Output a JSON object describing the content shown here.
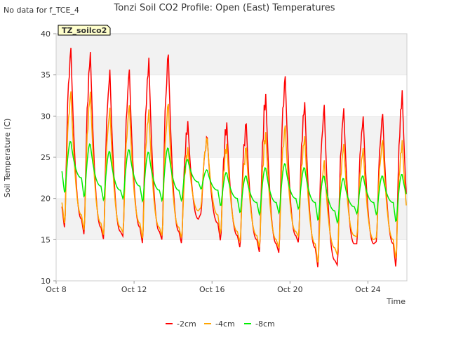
{
  "page": {
    "no_data_note": "No data for f_TCE_4"
  },
  "chart_data": {
    "type": "line",
    "title": "Tonzi Soil CO2 Profile: Open (East) Temperatures",
    "xlabel": "Time",
    "ylabel": "Soil Temperature (C)",
    "site_badge": "TZ_soilco2",
    "x_ticks": [
      "Oct 8",
      "Oct 12",
      "Oct 16",
      "Oct 20",
      "Oct 24"
    ],
    "x_tick_days": [
      8,
      12,
      16,
      20,
      24
    ],
    "xlim": [
      8,
      26
    ],
    "y_ticks": [
      10,
      15,
      20,
      25,
      30,
      35,
      40
    ],
    "ylim": [
      10,
      40
    ],
    "grid": "horizontal bands",
    "legend_position": "bottom-center",
    "series": [
      {
        "name": "-2cm",
        "color": "#ff0000",
        "day_start": 8.3,
        "daily": [
          [
            16.0,
            39.0,
            17.5
          ],
          [
            15.3,
            38.5,
            16.5
          ],
          [
            14.8,
            36.3,
            16.0
          ],
          [
            15.3,
            36.3,
            16.5
          ],
          [
            14.2,
            37.8,
            16.0
          ],
          [
            14.8,
            38.2,
            16.0
          ],
          [
            14.3,
            29.8,
            17.5
          ],
          [
            18.3,
            27.7,
            17.0
          ],
          [
            14.5,
            29.7,
            15.5
          ],
          [
            13.8,
            29.5,
            15.0
          ],
          [
            13.2,
            33.3,
            14.5
          ],
          [
            13.2,
            35.5,
            15.5
          ],
          [
            14.5,
            32.3,
            14.0
          ],
          [
            11.2,
            32.0,
            12.5
          ],
          [
            11.8,
            31.5,
            14.5
          ],
          [
            14.5,
            30.5,
            14.5
          ],
          [
            14.8,
            30.8,
            14.5
          ],
          [
            11.2,
            33.8,
            14.0
          ]
        ]
      },
      {
        "name": "-4cm",
        "color": "#ffa500",
        "day_start": 8.3,
        "daily": [
          [
            16.5,
            33.5,
            18.0
          ],
          [
            15.8,
            33.5,
            17.0
          ],
          [
            15.3,
            31.5,
            16.5
          ],
          [
            15.8,
            31.8,
            17.0
          ],
          [
            14.8,
            31.3,
            16.5
          ],
          [
            15.3,
            32.0,
            16.5
          ],
          [
            15.0,
            26.5,
            18.5
          ],
          [
            19.0,
            27.5,
            18.0
          ],
          [
            15.3,
            27.0,
            16.0
          ],
          [
            14.5,
            26.5,
            15.5
          ],
          [
            13.8,
            28.5,
            15.0
          ],
          [
            13.8,
            29.3,
            16.0
          ],
          [
            15.3,
            28.0,
            14.5
          ],
          [
            11.8,
            25.0,
            14.0
          ],
          [
            13.0,
            27.0,
            15.5
          ],
          [
            15.3,
            26.5,
            15.0
          ],
          [
            15.3,
            27.5,
            15.0
          ],
          [
            12.3,
            27.5,
            15.0
          ]
        ]
      },
      {
        "name": "-8cm",
        "color": "#00ee00",
        "day_start": 8.3,
        "daily": [
          [
            20.3,
            27.0,
            22.5
          ],
          [
            19.8,
            26.7,
            21.5
          ],
          [
            19.5,
            25.8,
            21.0
          ],
          [
            19.8,
            26.0,
            21.5
          ],
          [
            19.3,
            25.7,
            21.0
          ],
          [
            19.5,
            26.2,
            21.0
          ],
          [
            19.5,
            24.8,
            22.0
          ],
          [
            21.0,
            23.5,
            21.0
          ],
          [
            18.8,
            23.2,
            20.0
          ],
          [
            18.0,
            22.8,
            19.5
          ],
          [
            17.8,
            23.8,
            19.5
          ],
          [
            18.0,
            24.3,
            20.0
          ],
          [
            18.5,
            23.8,
            19.5
          ],
          [
            17.0,
            22.8,
            18.5
          ],
          [
            16.8,
            22.5,
            19.0
          ],
          [
            18.0,
            22.8,
            19.5
          ],
          [
            17.8,
            22.8,
            19.5
          ],
          [
            16.8,
            23.0,
            19.3
          ]
        ]
      }
    ]
  }
}
